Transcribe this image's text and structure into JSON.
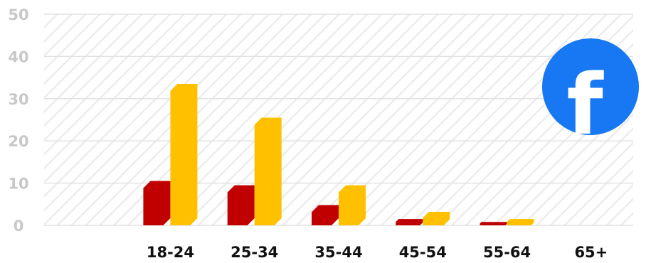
{
  "chart_data": {
    "type": "bar",
    "categories": [
      "",
      "18-24",
      "25-34",
      "35-44",
      "45-54",
      "55-64",
      "65+"
    ],
    "series": [
      {
        "color": "#c00000",
        "values": [
          0,
          10.5,
          9.5,
          4.8,
          1.5,
          0.8,
          0
        ]
      },
      {
        "color": "#ffc000",
        "values": [
          0,
          33.5,
          25.5,
          9.5,
          3.2,
          1.5,
          0
        ]
      }
    ],
    "yticks": [
      0,
      10,
      20,
      30,
      40,
      50
    ],
    "ylim": [
      0,
      50
    ],
    "grid": true,
    "legend": "none",
    "title": "",
    "xlabel": "",
    "ylabel": ""
  },
  "logo": {
    "name": "facebook-logo-icon",
    "color": "#1877f2",
    "letter": "f"
  }
}
